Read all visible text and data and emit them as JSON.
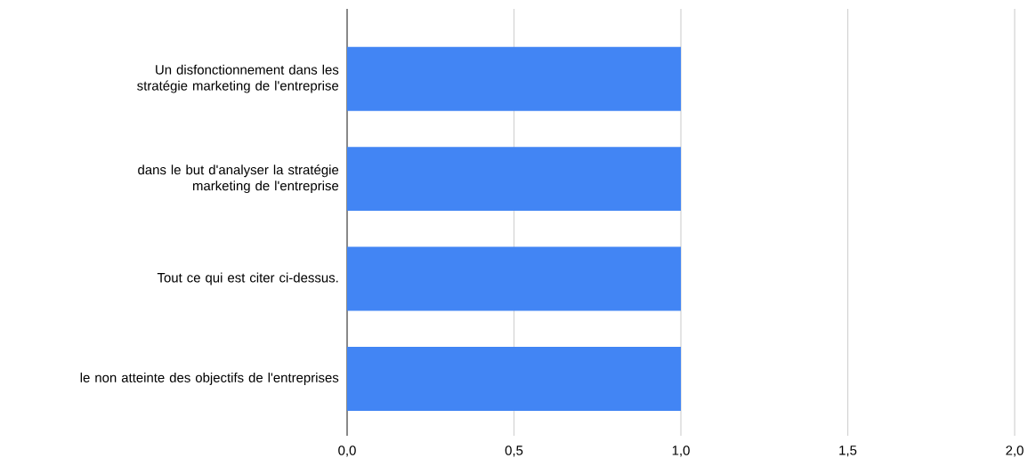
{
  "chart_data": {
    "type": "bar",
    "orientation": "horizontal",
    "categories": [
      "Un disfonctionnement dans les stratégie marketing de l'entreprise",
      "dans le but d'analyser la stratégie marketing de l'entreprise",
      "Tout ce qui est citer ci-dessus.",
      "le non atteinte des objectifs de l'entreprises"
    ],
    "values": [
      1,
      1,
      1,
      1
    ],
    "color": "#4285f4",
    "xlim": [
      0,
      2
    ],
    "xticks": [
      {
        "value": 0,
        "label": "0,0"
      },
      {
        "value": 0.5,
        "label": "0,5"
      },
      {
        "value": 1,
        "label": "1,0"
      },
      {
        "value": 1.5,
        "label": "1,5"
      },
      {
        "value": 2,
        "label": "2,0"
      }
    ],
    "grid": "x"
  }
}
